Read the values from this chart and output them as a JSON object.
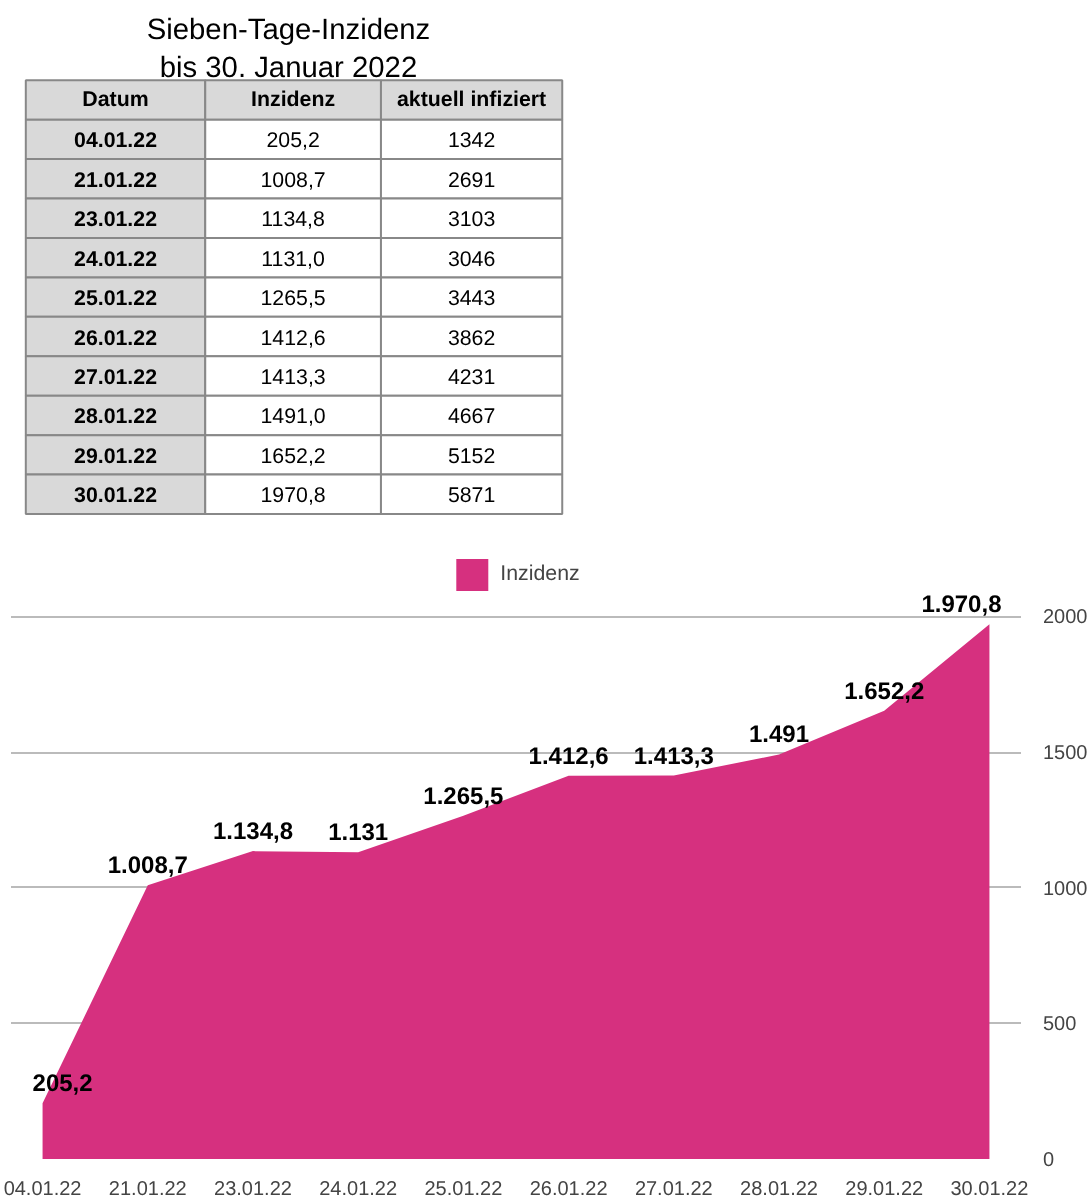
{
  "chart_data": [
    {
      "type": "other",
      "title": "Sieben-Tage-Inzidenz\nbis 30. Januar 2022",
      "xlabel": "Datum",
      "data_labels": true,
      "categories": [
        "04.01.22",
        "21.01.22",
        "23.01.22",
        "24.01.22",
        "25.01.22",
        "26.01.22",
        "27.01.22",
        "28.01.22",
        "29.01.22",
        "30.01.22"
      ],
      "series": [
        {
          "name": "Inzidenz",
          "values": [
            205.2,
            1008.7,
            1134.8,
            1131.0,
            1265.5,
            1412.6,
            1413.3,
            1491.0,
            1652.2,
            1970.8
          ],
          "value_labels": [
            "205,2",
            "1008,7",
            "1134,8",
            "1131,0",
            "1265,5",
            "1412,6",
            "1413,3",
            "1491,0",
            "1652,2",
            "1970,8"
          ]
        },
        {
          "name": "aktuell infiziert",
          "values": [
            1342,
            2691,
            3103,
            3046,
            3443,
            3862,
            4231,
            4667,
            5152,
            5871
          ],
          "value_labels": [
            "1342",
            "2691",
            "3103",
            "3046",
            "3443",
            "3862",
            "4231",
            "4667",
            "5152",
            "5871"
          ]
        }
      ]
    },
    {
      "type": "area",
      "categories": [
        "04.01.22",
        "21.01.22",
        "23.01.22",
        "24.01.22",
        "25.01.22",
        "26.01.22",
        "27.01.22",
        "28.01.22",
        "29.01.22",
        "30.01.22"
      ],
      "series": [
        {
          "name": "Inzidenz",
          "color": "#d6307f",
          "values": [
            205.2,
            1008.7,
            1134.8,
            1131.0,
            1265.5,
            1412.6,
            1413.3,
            1491.0,
            1652.2,
            1970.8
          ],
          "value_labels": [
            "205,2",
            "1.008,7",
            "1.134,8",
            "1.131",
            "1.265,5",
            "1.412,6",
            "1.413,3",
            "1.491",
            "1.652,2",
            "1.970,8"
          ]
        }
      ],
      "ylim": [
        0,
        2000
      ],
      "yticks": [
        0,
        500,
        1000,
        1500,
        2000
      ],
      "grid": "y",
      "legend": "top"
    }
  ]
}
